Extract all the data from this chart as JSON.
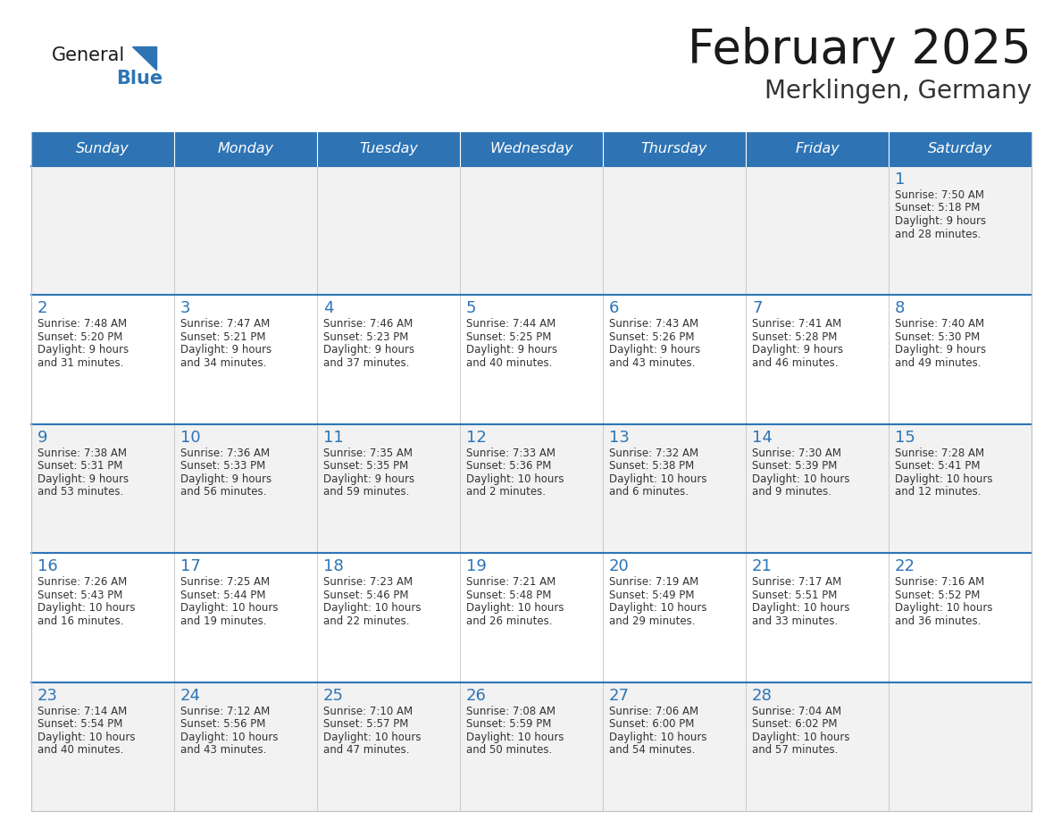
{
  "title": "February 2025",
  "subtitle": "Merklingen, Germany",
  "header_bg": "#2E74B5",
  "header_text": "#FFFFFF",
  "cell_bg_even": "#F2F2F2",
  "cell_bg_odd": "#FFFFFF",
  "border_color_blue": "#2E74B5",
  "border_color_gray": "#C0C0C0",
  "day_headers": [
    "Sunday",
    "Monday",
    "Tuesday",
    "Wednesday",
    "Thursday",
    "Friday",
    "Saturday"
  ],
  "title_color": "#1A1A1A",
  "subtitle_color": "#333333",
  "day_number_color": "#2E74B5",
  "cell_text_color": "#333333",
  "logo_general_color": "#1A1A1A",
  "logo_blue_color": "#2E74B5",
  "calendar_data": {
    "1": {
      "sunrise": "7:50 AM",
      "sunset": "5:18 PM",
      "daylight_hours": 9,
      "daylight_minutes": 28
    },
    "2": {
      "sunrise": "7:48 AM",
      "sunset": "5:20 PM",
      "daylight_hours": 9,
      "daylight_minutes": 31
    },
    "3": {
      "sunrise": "7:47 AM",
      "sunset": "5:21 PM",
      "daylight_hours": 9,
      "daylight_minutes": 34
    },
    "4": {
      "sunrise": "7:46 AM",
      "sunset": "5:23 PM",
      "daylight_hours": 9,
      "daylight_minutes": 37
    },
    "5": {
      "sunrise": "7:44 AM",
      "sunset": "5:25 PM",
      "daylight_hours": 9,
      "daylight_minutes": 40
    },
    "6": {
      "sunrise": "7:43 AM",
      "sunset": "5:26 PM",
      "daylight_hours": 9,
      "daylight_minutes": 43
    },
    "7": {
      "sunrise": "7:41 AM",
      "sunset": "5:28 PM",
      "daylight_hours": 9,
      "daylight_minutes": 46
    },
    "8": {
      "sunrise": "7:40 AM",
      "sunset": "5:30 PM",
      "daylight_hours": 9,
      "daylight_minutes": 49
    },
    "9": {
      "sunrise": "7:38 AM",
      "sunset": "5:31 PM",
      "daylight_hours": 9,
      "daylight_minutes": 53
    },
    "10": {
      "sunrise": "7:36 AM",
      "sunset": "5:33 PM",
      "daylight_hours": 9,
      "daylight_minutes": 56
    },
    "11": {
      "sunrise": "7:35 AM",
      "sunset": "5:35 PM",
      "daylight_hours": 9,
      "daylight_minutes": 59
    },
    "12": {
      "sunrise": "7:33 AM",
      "sunset": "5:36 PM",
      "daylight_hours": 10,
      "daylight_minutes": 2
    },
    "13": {
      "sunrise": "7:32 AM",
      "sunset": "5:38 PM",
      "daylight_hours": 10,
      "daylight_minutes": 6
    },
    "14": {
      "sunrise": "7:30 AM",
      "sunset": "5:39 PM",
      "daylight_hours": 10,
      "daylight_minutes": 9
    },
    "15": {
      "sunrise": "7:28 AM",
      "sunset": "5:41 PM",
      "daylight_hours": 10,
      "daylight_minutes": 12
    },
    "16": {
      "sunrise": "7:26 AM",
      "sunset": "5:43 PM",
      "daylight_hours": 10,
      "daylight_minutes": 16
    },
    "17": {
      "sunrise": "7:25 AM",
      "sunset": "5:44 PM",
      "daylight_hours": 10,
      "daylight_minutes": 19
    },
    "18": {
      "sunrise": "7:23 AM",
      "sunset": "5:46 PM",
      "daylight_hours": 10,
      "daylight_minutes": 22
    },
    "19": {
      "sunrise": "7:21 AM",
      "sunset": "5:48 PM",
      "daylight_hours": 10,
      "daylight_minutes": 26
    },
    "20": {
      "sunrise": "7:19 AM",
      "sunset": "5:49 PM",
      "daylight_hours": 10,
      "daylight_minutes": 29
    },
    "21": {
      "sunrise": "7:17 AM",
      "sunset": "5:51 PM",
      "daylight_hours": 10,
      "daylight_minutes": 33
    },
    "22": {
      "sunrise": "7:16 AM",
      "sunset": "5:52 PM",
      "daylight_hours": 10,
      "daylight_minutes": 36
    },
    "23": {
      "sunrise": "7:14 AM",
      "sunset": "5:54 PM",
      "daylight_hours": 10,
      "daylight_minutes": 40
    },
    "24": {
      "sunrise": "7:12 AM",
      "sunset": "5:56 PM",
      "daylight_hours": 10,
      "daylight_minutes": 43
    },
    "25": {
      "sunrise": "7:10 AM",
      "sunset": "5:57 PM",
      "daylight_hours": 10,
      "daylight_minutes": 47
    },
    "26": {
      "sunrise": "7:08 AM",
      "sunset": "5:59 PM",
      "daylight_hours": 10,
      "daylight_minutes": 50
    },
    "27": {
      "sunrise": "7:06 AM",
      "sunset": "6:00 PM",
      "daylight_hours": 10,
      "daylight_minutes": 54
    },
    "28": {
      "sunrise": "7:04 AM",
      "sunset": "6:02 PM",
      "daylight_hours": 10,
      "daylight_minutes": 57
    }
  }
}
